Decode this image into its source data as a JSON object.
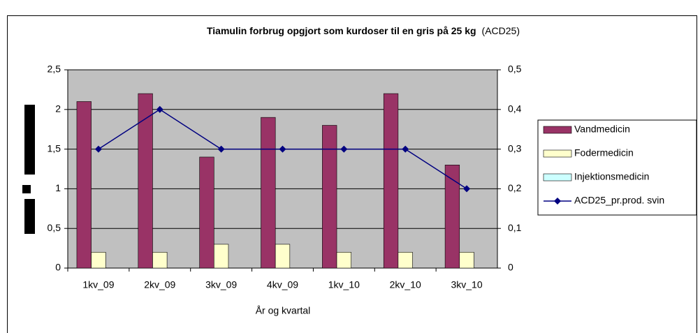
{
  "chart_data": {
    "type": "bar",
    "title": "Tiamulin forbrug opgjort som kurdoser til en gris på 25 kg",
    "subtitle": "(ACD25)",
    "x_label": "År og kvartal",
    "categories": [
      "1kv_09",
      "2kv_09",
      "3kv_09",
      "4kv_09",
      "1kv_10",
      "2kv_10",
      "3kv_10"
    ],
    "series": [
      {
        "name": "Vandmedicin",
        "color": "#993366",
        "type": "bar",
        "values": [
          2.1,
          2.2,
          1.4,
          1.9,
          1.8,
          2.2,
          1.3
        ]
      },
      {
        "name": "Fodermedicin",
        "color": "#ffffcc",
        "type": "bar",
        "values": [
          0.2,
          0.2,
          0.3,
          0.3,
          0.2,
          0.2,
          0.2
        ]
      },
      {
        "name": "Injektionsmedicin",
        "color": "#ccffff",
        "type": "bar",
        "values": [
          0,
          0,
          0,
          0,
          0,
          0,
          0
        ]
      },
      {
        "name": "ACD25_pr.prod. svin",
        "color": "#000080",
        "type": "line",
        "axis": "y2",
        "values": [
          0.3,
          0.4,
          0.3,
          0.3,
          0.3,
          0.3,
          0.2
        ]
      }
    ],
    "ylim": [
      0,
      2.5
    ],
    "yticks": [
      0,
      {
        "value": 0.5,
        "label": "0,5"
      },
      1,
      {
        "value": 1.5,
        "label": "1,5"
      },
      2,
      {
        "value": 2.5,
        "label": "2,5"
      }
    ],
    "y2lim": [
      0,
      0.5
    ],
    "y2ticks": [
      0,
      {
        "value": 0.1,
        "label": "0,1"
      },
      {
        "value": 0.2,
        "label": "0,2"
      },
      {
        "value": 0.3,
        "label": "0,3"
      },
      {
        "value": 0.4,
        "label": "0,4"
      },
      {
        "value": 0.5,
        "label": "0,5"
      }
    ],
    "grid": true,
    "legend": "right",
    "plot_background": "#c0c0c0"
  }
}
